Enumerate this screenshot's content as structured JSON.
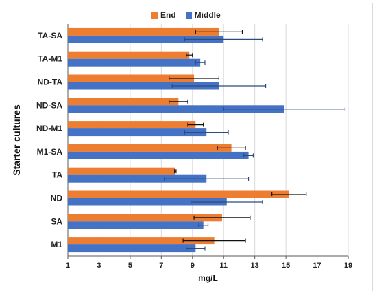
{
  "chart_data": {
    "type": "bar",
    "orientation": "horizontal",
    "categories": [
      "TA-SA",
      "TA-M1",
      "ND-TA",
      "ND-SA",
      "ND-M1",
      "M1-SA",
      "TA",
      "ND",
      "SA",
      "M1"
    ],
    "series": [
      {
        "name": "End",
        "color": "#ED7D31",
        "values": [
          10.7,
          8.8,
          9.1,
          8.1,
          9.2,
          11.5,
          7.9,
          15.2,
          10.9,
          10.4
        ],
        "errors": [
          1.5,
          0.2,
          1.6,
          0.6,
          0.5,
          0.9,
          0.05,
          1.1,
          1.8,
          2.0
        ]
      },
      {
        "name": "Middle",
        "color": "#4472C4",
        "values": [
          11.0,
          9.5,
          10.7,
          14.9,
          9.9,
          12.6,
          9.9,
          11.2,
          9.7,
          9.2
        ],
        "errors": [
          2.5,
          0.3,
          3.0,
          3.9,
          1.4,
          0.3,
          2.7,
          2.3,
          0.3,
          0.6
        ]
      }
    ],
    "xlabel": "mg/L",
    "ylabel": "Starter cultures",
    "xlim": [
      1,
      19
    ],
    "xticks": [
      1,
      3,
      5,
      7,
      9,
      11,
      13,
      15,
      17,
      19
    ],
    "grid": true,
    "legend": "top-center"
  }
}
